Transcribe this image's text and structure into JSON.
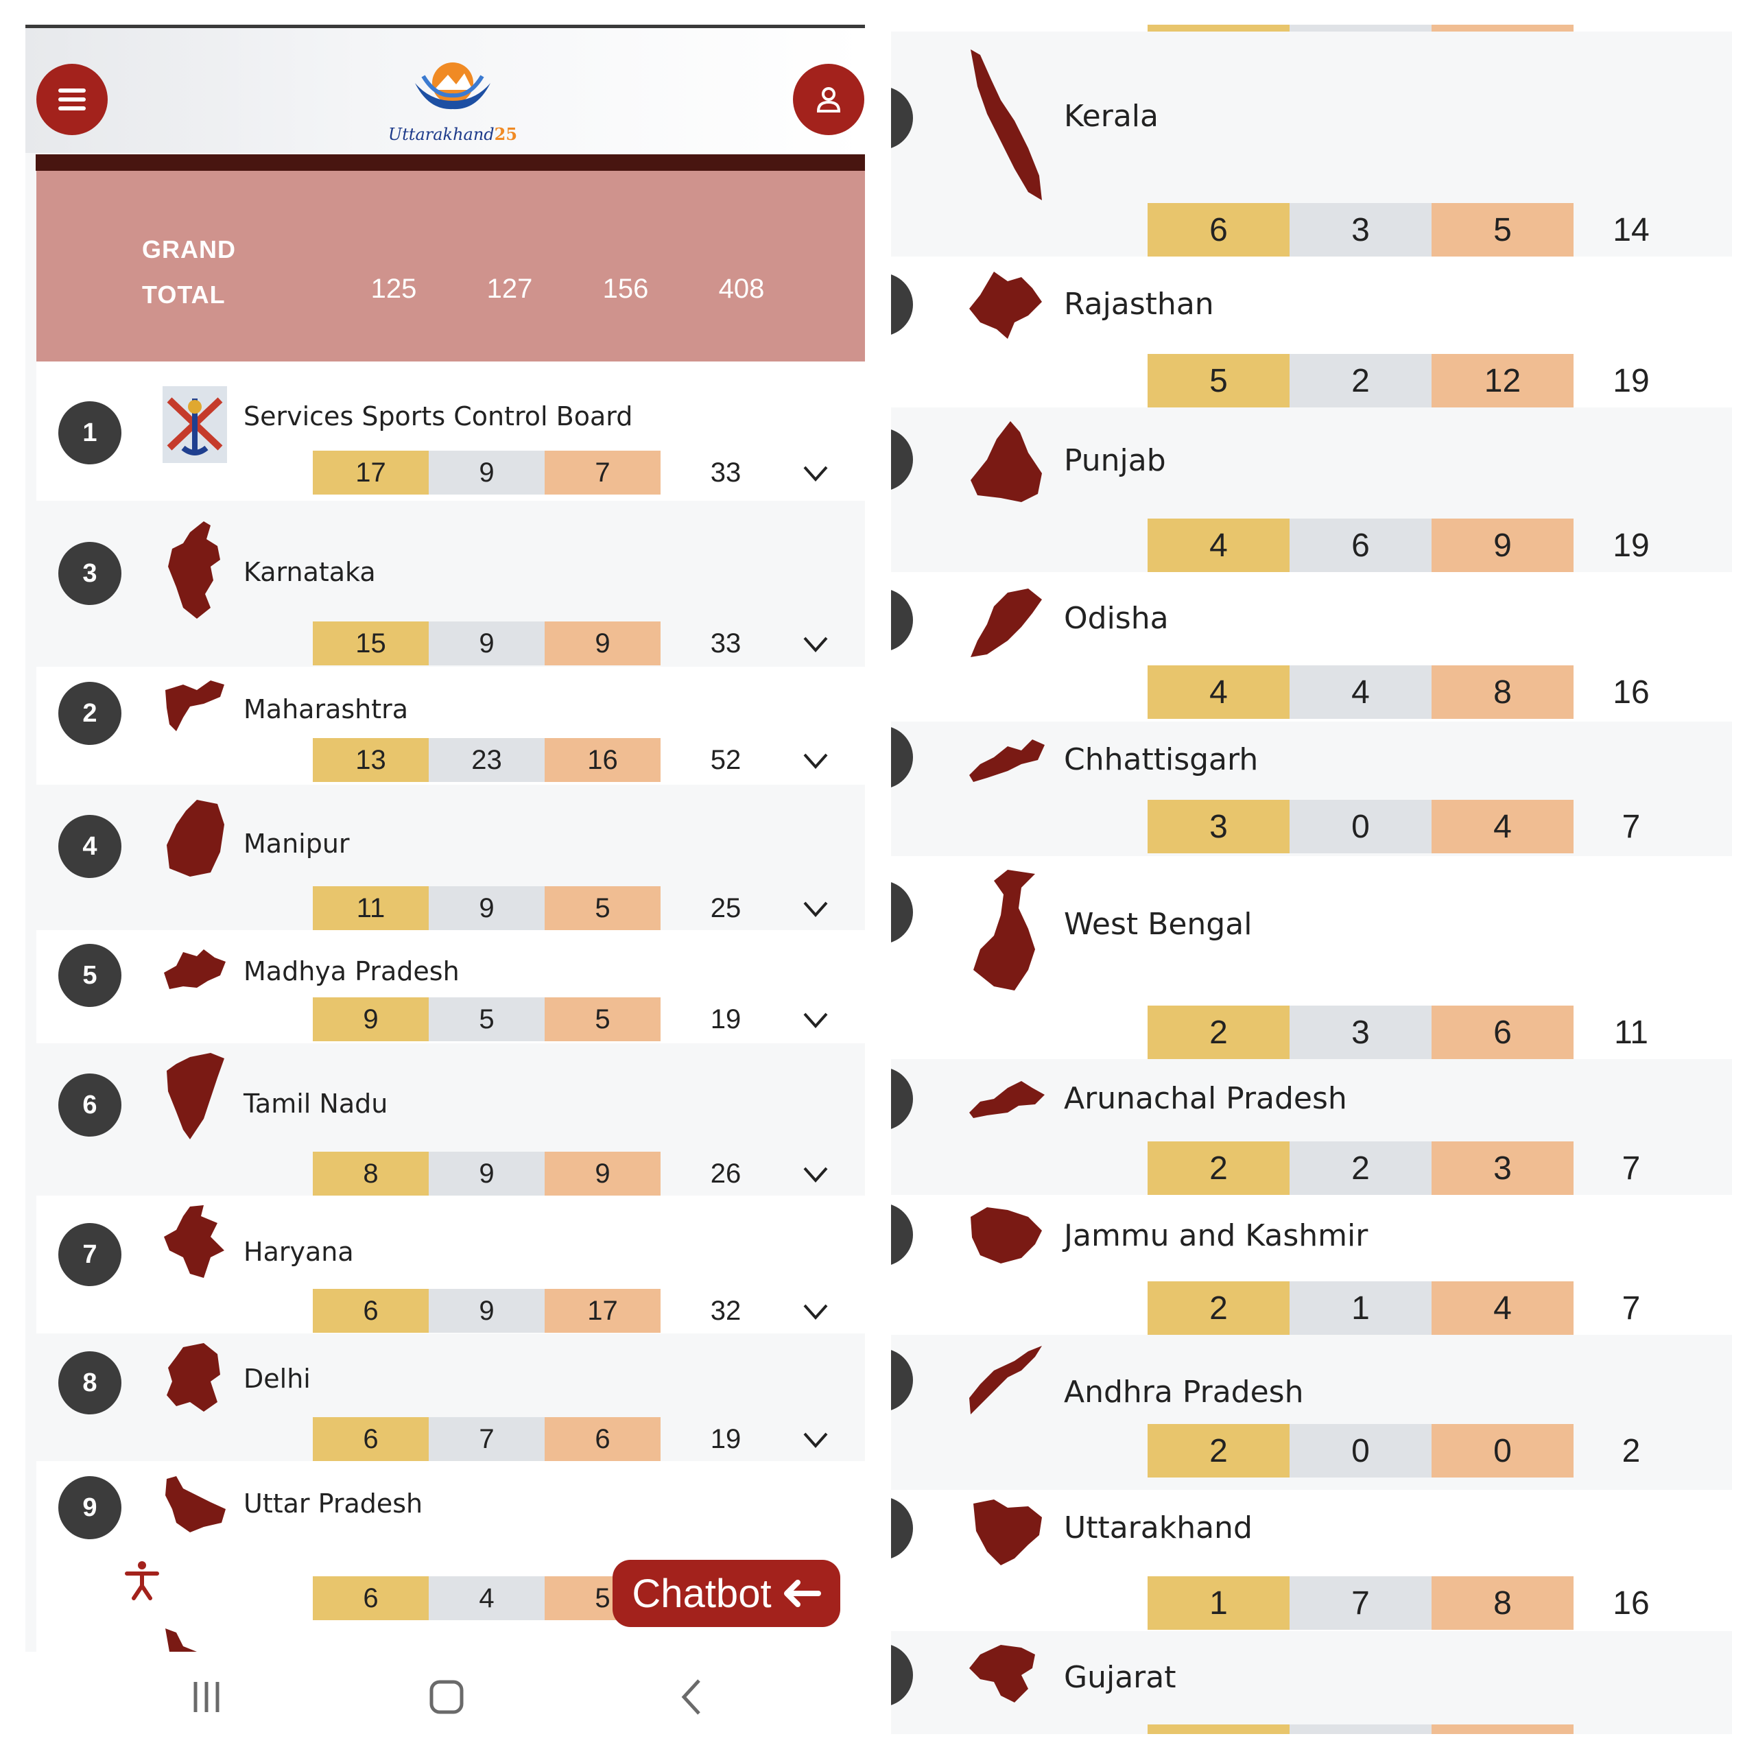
{
  "header": {
    "logo_text": "Uttarakhand",
    "logo_number": "25",
    "menu_icon": "hamburger-icon",
    "user_icon": "user-icon"
  },
  "grand_total": {
    "label_line1": "GRAND",
    "label_line2": "TOTAL",
    "gold": "125",
    "silver": "127",
    "bronze": "156",
    "total": "408"
  },
  "colors": {
    "accent": "#a3221c",
    "header_band": "#cf938d",
    "dark_bar": "#481510",
    "gold": "#e8c56c",
    "silver": "#dfe2e6",
    "bronze": "#f0bd92",
    "rank_badge": "#3c3c3c",
    "map": "#7a1a14"
  },
  "left_rows": [
    {
      "rank": "1",
      "name": "Services Sports Control Board",
      "gold": "17",
      "silver": "9",
      "bronze": "7",
      "total": "33"
    },
    {
      "rank": "3",
      "name": "Karnataka",
      "gold": "15",
      "silver": "9",
      "bronze": "9",
      "total": "33"
    },
    {
      "rank": "2",
      "name": "Maharashtra",
      "gold": "13",
      "silver": "23",
      "bronze": "16",
      "total": "52"
    },
    {
      "rank": "4",
      "name": "Manipur",
      "gold": "11",
      "silver": "9",
      "bronze": "5",
      "total": "25"
    },
    {
      "rank": "5",
      "name": "Madhya Pradesh",
      "gold": "9",
      "silver": "5",
      "bronze": "5",
      "total": "19"
    },
    {
      "rank": "6",
      "name": "Tamil Nadu",
      "gold": "8",
      "silver": "9",
      "bronze": "9",
      "total": "26"
    },
    {
      "rank": "7",
      "name": "Haryana",
      "gold": "6",
      "silver": "9",
      "bronze": "17",
      "total": "32"
    },
    {
      "rank": "8",
      "name": "Delhi",
      "gold": "6",
      "silver": "7",
      "bronze": "6",
      "total": "19"
    },
    {
      "rank": "9",
      "name": "Uttar Pradesh",
      "gold": "6",
      "silver": "4",
      "bronze": "5",
      "total": ""
    }
  ],
  "right_rows": [
    {
      "name": "Kerala",
      "gold": "6",
      "silver": "3",
      "bronze": "5",
      "total": "14"
    },
    {
      "name": "Rajasthan",
      "gold": "5",
      "silver": "2",
      "bronze": "12",
      "total": "19"
    },
    {
      "name": "Punjab",
      "gold": "4",
      "silver": "6",
      "bronze": "9",
      "total": "19"
    },
    {
      "name": "Odisha",
      "gold": "4",
      "silver": "4",
      "bronze": "8",
      "total": "16"
    },
    {
      "name": "Chhattisgarh",
      "gold": "3",
      "silver": "0",
      "bronze": "4",
      "total": "7"
    },
    {
      "name": "West Bengal",
      "gold": "2",
      "silver": "3",
      "bronze": "6",
      "total": "11"
    },
    {
      "name": "Arunachal Pradesh",
      "gold": "2",
      "silver": "2",
      "bronze": "3",
      "total": "7"
    },
    {
      "name": "Jammu and Kashmir",
      "gold": "2",
      "silver": "1",
      "bronze": "4",
      "total": "7"
    },
    {
      "name": "Andhra Pradesh",
      "gold": "2",
      "silver": "0",
      "bronze": "0",
      "total": "2"
    },
    {
      "name": "Uttarakhand",
      "gold": "1",
      "silver": "7",
      "bronze": "8",
      "total": "16"
    },
    {
      "name": "Gujarat",
      "gold": "",
      "silver": "",
      "bronze": "",
      "total": ""
    }
  ],
  "chatbot": {
    "label": "Chatbot"
  },
  "nav": {
    "recents_icon": "recents-icon",
    "home_icon": "home-icon",
    "back_icon": "back-icon"
  }
}
